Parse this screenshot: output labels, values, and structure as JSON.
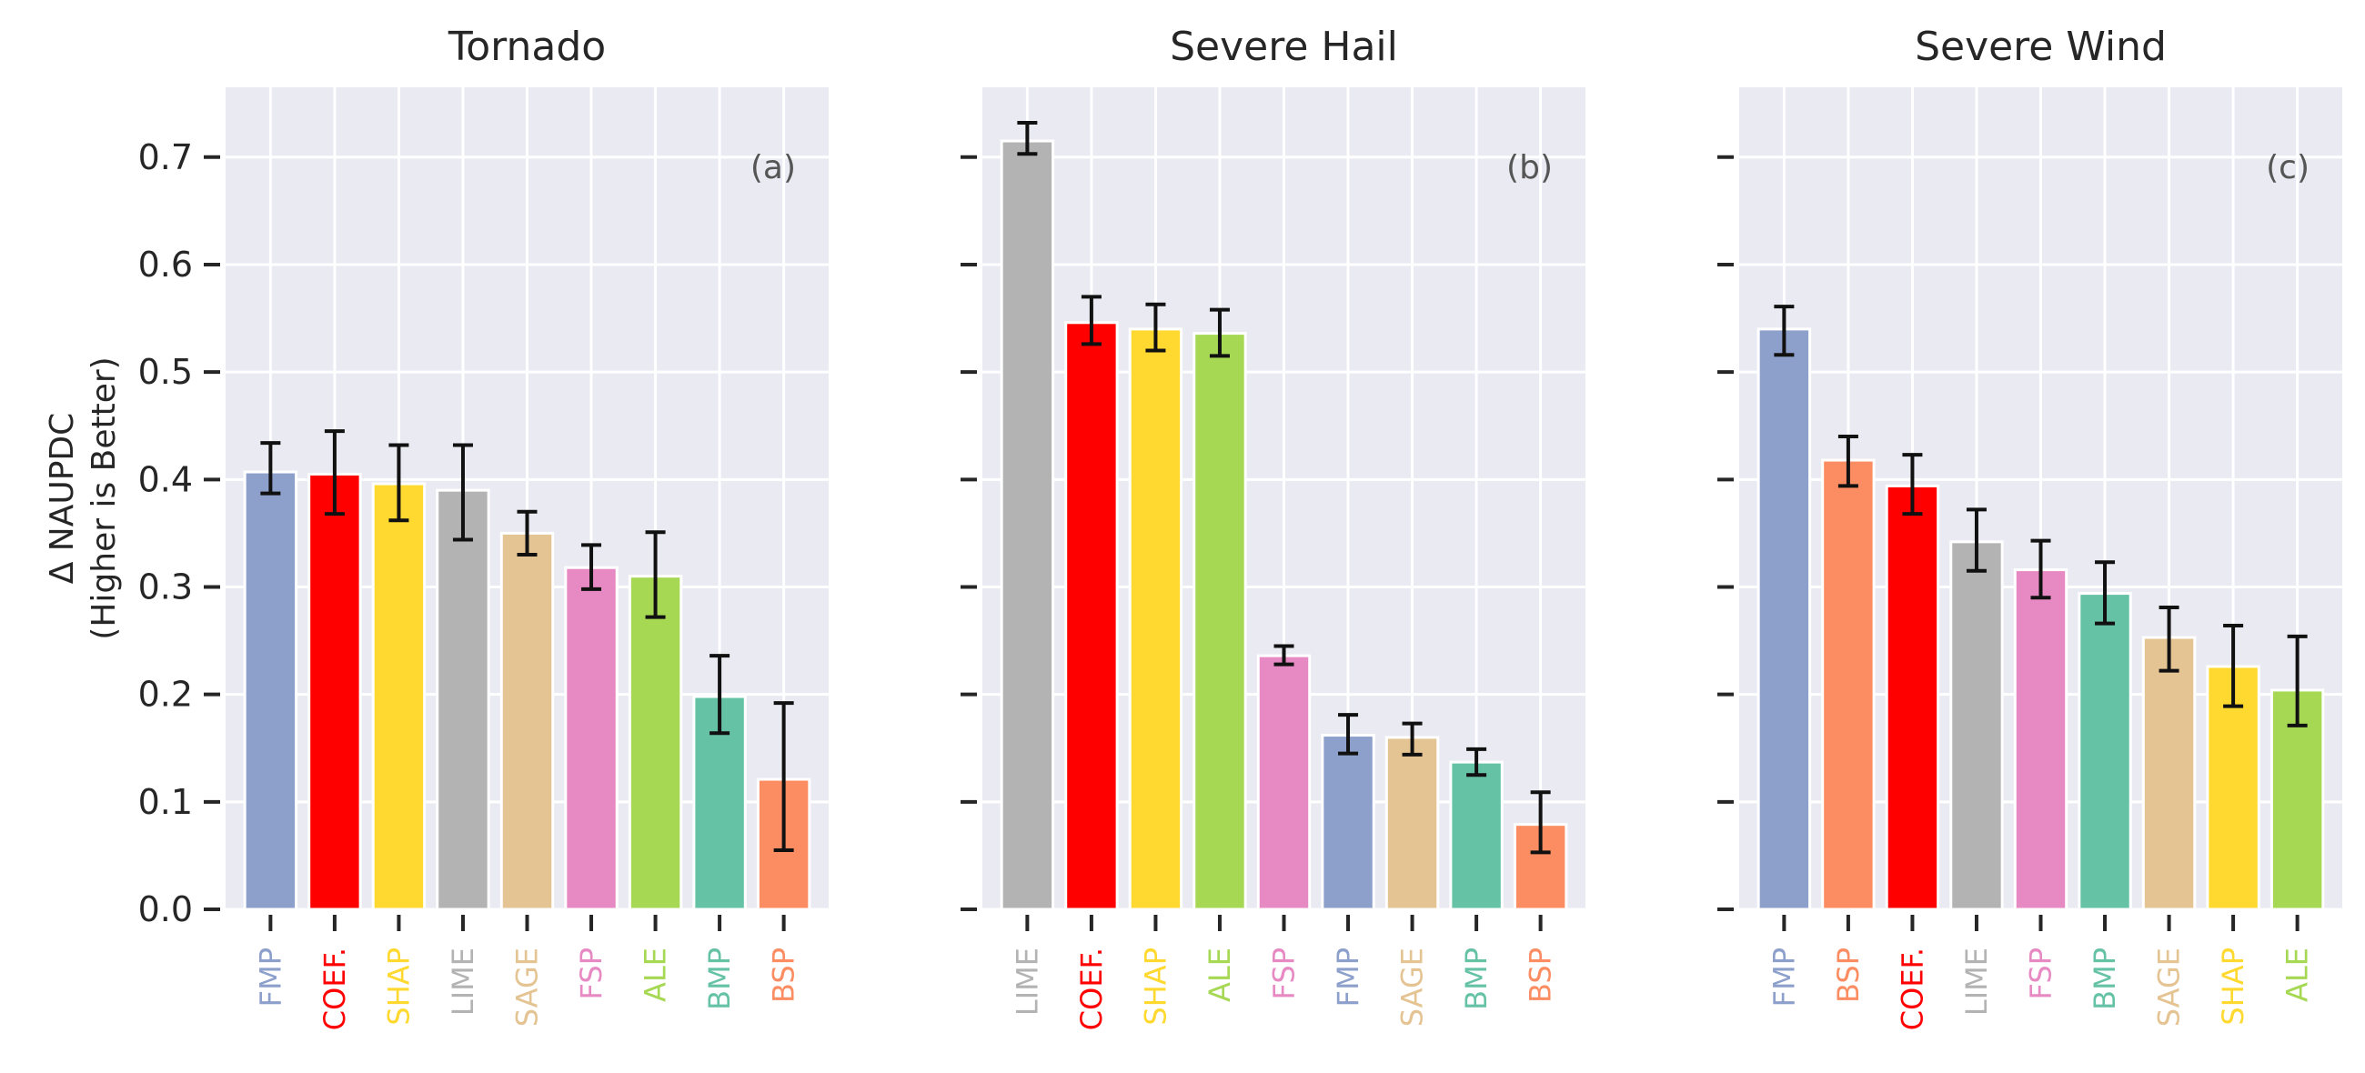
{
  "chart_data": [
    {
      "type": "bar",
      "title": "Tornado",
      "panel_label": "(a)",
      "ylabel": [
        "Δ NAUPDC",
        "(Higher is Better)"
      ],
      "ylim": [
        0,
        0.765
      ],
      "yticks": [
        "0.0",
        "0.1",
        "0.2",
        "0.3",
        "0.4",
        "0.5",
        "0.6",
        "0.7"
      ],
      "grid": true,
      "categories": [
        "FMP",
        "COEF.",
        "SHAP",
        "LIME",
        "SAGE",
        "FSP",
        "ALE",
        "BMP",
        "BSP"
      ],
      "values": [
        0.407,
        0.405,
        0.396,
        0.39,
        0.35,
        0.318,
        0.31,
        0.198,
        0.121
      ],
      "error_low": [
        0.387,
        0.368,
        0.362,
        0.344,
        0.33,
        0.298,
        0.272,
        0.164,
        0.055
      ],
      "error_high": [
        0.434,
        0.445,
        0.432,
        0.432,
        0.37,
        0.339,
        0.351,
        0.236,
        0.192
      ],
      "colors": [
        "#8da0cb",
        "#ff0000",
        "#ffd92f",
        "#b3b3b3",
        "#e5c494",
        "#e78ac3",
        "#a6d854",
        "#66c2a5",
        "#fc8d62"
      ]
    },
    {
      "type": "bar",
      "title": "Severe Hail",
      "panel_label": "(b)",
      "ylim": [
        0,
        0.765
      ],
      "grid": true,
      "categories": [
        "LIME",
        "COEF.",
        "SHAP",
        "ALE",
        "FSP",
        "FMP",
        "SAGE",
        "BMP",
        "BSP"
      ],
      "values": [
        0.715,
        0.546,
        0.54,
        0.536,
        0.236,
        0.162,
        0.16,
        0.137,
        0.079
      ],
      "error_low": [
        0.703,
        0.526,
        0.52,
        0.515,
        0.228,
        0.145,
        0.144,
        0.125,
        0.053
      ],
      "error_high": [
        0.732,
        0.57,
        0.563,
        0.558,
        0.245,
        0.181,
        0.173,
        0.149,
        0.109
      ],
      "colors": [
        "#b3b3b3",
        "#ff0000",
        "#ffd92f",
        "#a6d854",
        "#e78ac3",
        "#8da0cb",
        "#e5c494",
        "#66c2a5",
        "#fc8d62"
      ]
    },
    {
      "type": "bar",
      "title": "Severe Wind",
      "panel_label": "(c)",
      "ylim": [
        0,
        0.765
      ],
      "grid": true,
      "categories": [
        "FMP",
        "BSP",
        "COEF.",
        "LIME",
        "FSP",
        "BMP",
        "SAGE",
        "SHAP",
        "ALE"
      ],
      "values": [
        0.54,
        0.418,
        0.394,
        0.342,
        0.316,
        0.294,
        0.253,
        0.226,
        0.204
      ],
      "error_low": [
        0.516,
        0.394,
        0.368,
        0.315,
        0.29,
        0.266,
        0.222,
        0.189,
        0.171
      ],
      "error_high": [
        0.561,
        0.44,
        0.423,
        0.372,
        0.343,
        0.323,
        0.281,
        0.264,
        0.254
      ],
      "colors": [
        "#8da0cb",
        "#fc8d62",
        "#ff0000",
        "#b3b3b3",
        "#e78ac3",
        "#66c2a5",
        "#e5c494",
        "#ffd92f",
        "#a6d854"
      ]
    }
  ]
}
